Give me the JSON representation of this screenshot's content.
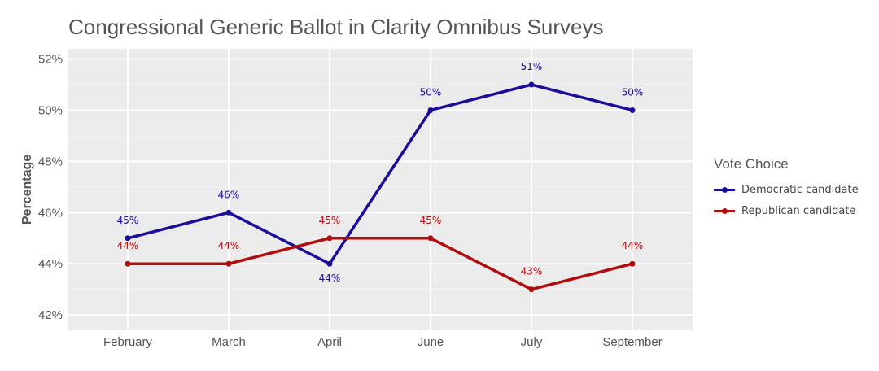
{
  "chart_data": {
    "type": "line",
    "title": "Congressional Generic Ballot in Clarity Omnibus Surveys",
    "xlabel": "",
    "ylabel": "Percentage",
    "categories": [
      "February",
      "March",
      "April",
      "June",
      "July",
      "September"
    ],
    "ylim": [
      41.4,
      52.4
    ],
    "yticks": [
      42,
      44,
      46,
      48,
      50,
      52
    ],
    "ytick_labels": [
      "42%",
      "44%",
      "46%",
      "48%",
      "50%",
      "52%"
    ],
    "grid": true,
    "legend_title": "Vote Choice",
    "legend_position": "right",
    "series": [
      {
        "name": "Democratic candidate",
        "color": "#1a0d99",
        "values": [
          45,
          46,
          44,
          50,
          51,
          50
        ],
        "labels": [
          "45%",
          "46%",
          "44%",
          "50%",
          "51%",
          "50%"
        ],
        "label_side": [
          "above",
          "above",
          "below",
          "above",
          "above",
          "above"
        ]
      },
      {
        "name": "Republican candidate",
        "color": "#b30c0c",
        "values": [
          44,
          44,
          45,
          45,
          43,
          44
        ],
        "labels": [
          "44%",
          "44%",
          "45%",
          "45%",
          "43%",
          "44%"
        ],
        "label_side": [
          "above",
          "above",
          "above",
          "above",
          "above",
          "above"
        ]
      }
    ]
  }
}
